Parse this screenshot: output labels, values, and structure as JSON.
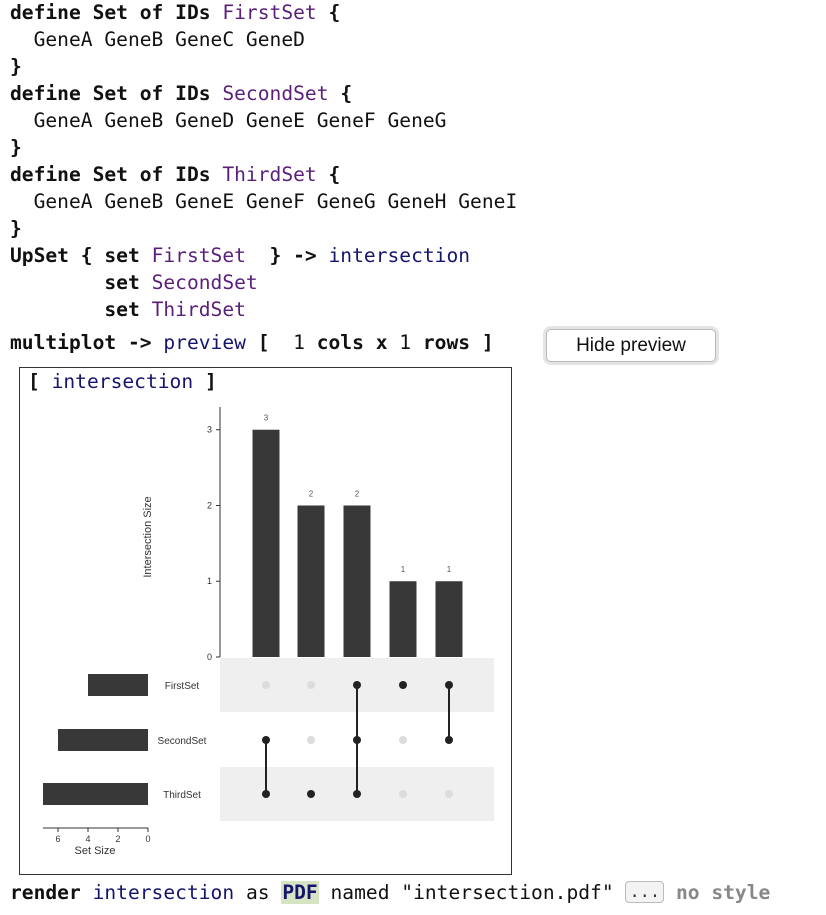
{
  "code": {
    "kw_define": "define Set of IDs",
    "brace_open": "{",
    "brace_close": "}",
    "sets": [
      {
        "name": "FirstSet",
        "members": "GeneA GeneB GeneC GeneD"
      },
      {
        "name": "SecondSet",
        "members": "GeneA GeneB GeneD GeneE GeneF GeneG"
      },
      {
        "name": "ThirdSet",
        "members": "GeneA GeneB GeneE GeneF GeneG GeneH GeneI"
      }
    ],
    "upset_kw": "UpSet {",
    "set_kw": "set",
    "upset_close": "}",
    "arrow": "->",
    "intersection": "intersection",
    "multiplot_kw": "multiplot",
    "preview": "preview",
    "bracket_open": "[",
    "cols_num": "1",
    "cols_kw": "cols x",
    "rows_num": "1",
    "rows_kw": "rows",
    "bracket_close": "]",
    "hide_preview": "Hide preview",
    "preview_title": "intersection",
    "render_kw": "render",
    "as_kw": "as",
    "format": "PDF",
    "named_kw": "named",
    "filename": "\"intersection.pdf\"",
    "dots": "...",
    "no_style": "no style"
  },
  "chart_data": {
    "type": "bar",
    "ylabel": "Intersection Size",
    "yticks": [
      0,
      1,
      2,
      3
    ],
    "ylim": [
      0,
      3.3
    ],
    "bars": [
      {
        "value": 3,
        "label": "3",
        "members": [
          false,
          true,
          true
        ]
      },
      {
        "value": 2,
        "label": "2",
        "members": [
          false,
          false,
          true
        ]
      },
      {
        "value": 2,
        "label": "2",
        "members": [
          true,
          true,
          true
        ]
      },
      {
        "value": 1,
        "label": "1",
        "members": [
          true,
          false,
          false
        ]
      },
      {
        "value": 1,
        "label": "1",
        "members": [
          true,
          true,
          false
        ]
      }
    ],
    "sets": [
      {
        "name": "FirstSet",
        "size": 4
      },
      {
        "name": "SecondSet",
        "size": 6
      },
      {
        "name": "ThirdSet",
        "size": 7
      }
    ],
    "set_size_label": "Set Size",
    "set_size_ticks": [
      6,
      4,
      2,
      0
    ],
    "set_size_max": 7,
    "bar_color": "#383838",
    "dot_active": "#222222",
    "dot_inactive": "#dcdcdc",
    "stripe_color": "#efefef"
  }
}
